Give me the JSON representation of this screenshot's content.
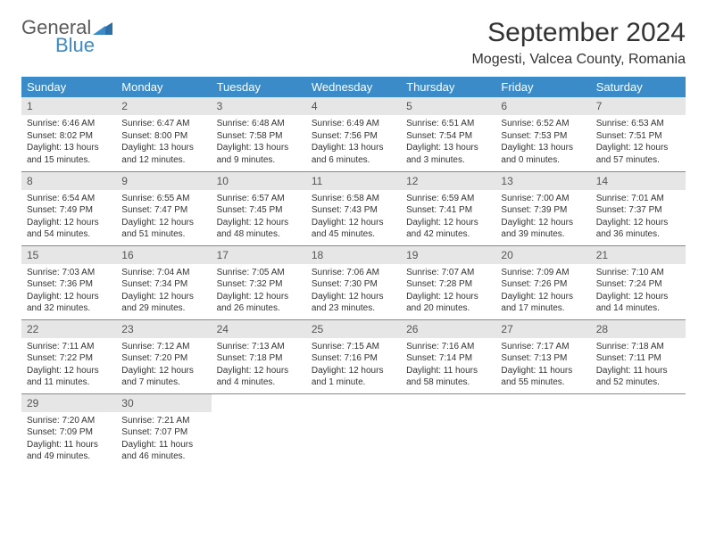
{
  "logo": {
    "line1": "General",
    "line2": "Blue"
  },
  "title": "September 2024",
  "location": "Mogesti, Valcea County, Romania",
  "header_color": "#3b8bc8",
  "daynum_bg": "#e6e6e6",
  "columns": [
    "Sunday",
    "Monday",
    "Tuesday",
    "Wednesday",
    "Thursday",
    "Friday",
    "Saturday"
  ],
  "weeks": [
    [
      {
        "n": "1",
        "sr": "Sunrise: 6:46 AM",
        "ss": "Sunset: 8:02 PM",
        "d1": "Daylight: 13 hours",
        "d2": "and 15 minutes."
      },
      {
        "n": "2",
        "sr": "Sunrise: 6:47 AM",
        "ss": "Sunset: 8:00 PM",
        "d1": "Daylight: 13 hours",
        "d2": "and 12 minutes."
      },
      {
        "n": "3",
        "sr": "Sunrise: 6:48 AM",
        "ss": "Sunset: 7:58 PM",
        "d1": "Daylight: 13 hours",
        "d2": "and 9 minutes."
      },
      {
        "n": "4",
        "sr": "Sunrise: 6:49 AM",
        "ss": "Sunset: 7:56 PM",
        "d1": "Daylight: 13 hours",
        "d2": "and 6 minutes."
      },
      {
        "n": "5",
        "sr": "Sunrise: 6:51 AM",
        "ss": "Sunset: 7:54 PM",
        "d1": "Daylight: 13 hours",
        "d2": "and 3 minutes."
      },
      {
        "n": "6",
        "sr": "Sunrise: 6:52 AM",
        "ss": "Sunset: 7:53 PM",
        "d1": "Daylight: 13 hours",
        "d2": "and 0 minutes."
      },
      {
        "n": "7",
        "sr": "Sunrise: 6:53 AM",
        "ss": "Sunset: 7:51 PM",
        "d1": "Daylight: 12 hours",
        "d2": "and 57 minutes."
      }
    ],
    [
      {
        "n": "8",
        "sr": "Sunrise: 6:54 AM",
        "ss": "Sunset: 7:49 PM",
        "d1": "Daylight: 12 hours",
        "d2": "and 54 minutes."
      },
      {
        "n": "9",
        "sr": "Sunrise: 6:55 AM",
        "ss": "Sunset: 7:47 PM",
        "d1": "Daylight: 12 hours",
        "d2": "and 51 minutes."
      },
      {
        "n": "10",
        "sr": "Sunrise: 6:57 AM",
        "ss": "Sunset: 7:45 PM",
        "d1": "Daylight: 12 hours",
        "d2": "and 48 minutes."
      },
      {
        "n": "11",
        "sr": "Sunrise: 6:58 AM",
        "ss": "Sunset: 7:43 PM",
        "d1": "Daylight: 12 hours",
        "d2": "and 45 minutes."
      },
      {
        "n": "12",
        "sr": "Sunrise: 6:59 AM",
        "ss": "Sunset: 7:41 PM",
        "d1": "Daylight: 12 hours",
        "d2": "and 42 minutes."
      },
      {
        "n": "13",
        "sr": "Sunrise: 7:00 AM",
        "ss": "Sunset: 7:39 PM",
        "d1": "Daylight: 12 hours",
        "d2": "and 39 minutes."
      },
      {
        "n": "14",
        "sr": "Sunrise: 7:01 AM",
        "ss": "Sunset: 7:37 PM",
        "d1": "Daylight: 12 hours",
        "d2": "and 36 minutes."
      }
    ],
    [
      {
        "n": "15",
        "sr": "Sunrise: 7:03 AM",
        "ss": "Sunset: 7:36 PM",
        "d1": "Daylight: 12 hours",
        "d2": "and 32 minutes."
      },
      {
        "n": "16",
        "sr": "Sunrise: 7:04 AM",
        "ss": "Sunset: 7:34 PM",
        "d1": "Daylight: 12 hours",
        "d2": "and 29 minutes."
      },
      {
        "n": "17",
        "sr": "Sunrise: 7:05 AM",
        "ss": "Sunset: 7:32 PM",
        "d1": "Daylight: 12 hours",
        "d2": "and 26 minutes."
      },
      {
        "n": "18",
        "sr": "Sunrise: 7:06 AM",
        "ss": "Sunset: 7:30 PM",
        "d1": "Daylight: 12 hours",
        "d2": "and 23 minutes."
      },
      {
        "n": "19",
        "sr": "Sunrise: 7:07 AM",
        "ss": "Sunset: 7:28 PM",
        "d1": "Daylight: 12 hours",
        "d2": "and 20 minutes."
      },
      {
        "n": "20",
        "sr": "Sunrise: 7:09 AM",
        "ss": "Sunset: 7:26 PM",
        "d1": "Daylight: 12 hours",
        "d2": "and 17 minutes."
      },
      {
        "n": "21",
        "sr": "Sunrise: 7:10 AM",
        "ss": "Sunset: 7:24 PM",
        "d1": "Daylight: 12 hours",
        "d2": "and 14 minutes."
      }
    ],
    [
      {
        "n": "22",
        "sr": "Sunrise: 7:11 AM",
        "ss": "Sunset: 7:22 PM",
        "d1": "Daylight: 12 hours",
        "d2": "and 11 minutes."
      },
      {
        "n": "23",
        "sr": "Sunrise: 7:12 AM",
        "ss": "Sunset: 7:20 PM",
        "d1": "Daylight: 12 hours",
        "d2": "and 7 minutes."
      },
      {
        "n": "24",
        "sr": "Sunrise: 7:13 AM",
        "ss": "Sunset: 7:18 PM",
        "d1": "Daylight: 12 hours",
        "d2": "and 4 minutes."
      },
      {
        "n": "25",
        "sr": "Sunrise: 7:15 AM",
        "ss": "Sunset: 7:16 PM",
        "d1": "Daylight: 12 hours",
        "d2": "and 1 minute."
      },
      {
        "n": "26",
        "sr": "Sunrise: 7:16 AM",
        "ss": "Sunset: 7:14 PM",
        "d1": "Daylight: 11 hours",
        "d2": "and 58 minutes."
      },
      {
        "n": "27",
        "sr": "Sunrise: 7:17 AM",
        "ss": "Sunset: 7:13 PM",
        "d1": "Daylight: 11 hours",
        "d2": "and 55 minutes."
      },
      {
        "n": "28",
        "sr": "Sunrise: 7:18 AM",
        "ss": "Sunset: 7:11 PM",
        "d1": "Daylight: 11 hours",
        "d2": "and 52 minutes."
      }
    ],
    [
      {
        "n": "29",
        "sr": "Sunrise: 7:20 AM",
        "ss": "Sunset: 7:09 PM",
        "d1": "Daylight: 11 hours",
        "d2": "and 49 minutes."
      },
      {
        "n": "30",
        "sr": "Sunrise: 7:21 AM",
        "ss": "Sunset: 7:07 PM",
        "d1": "Daylight: 11 hours",
        "d2": "and 46 minutes."
      },
      null,
      null,
      null,
      null,
      null
    ]
  ]
}
